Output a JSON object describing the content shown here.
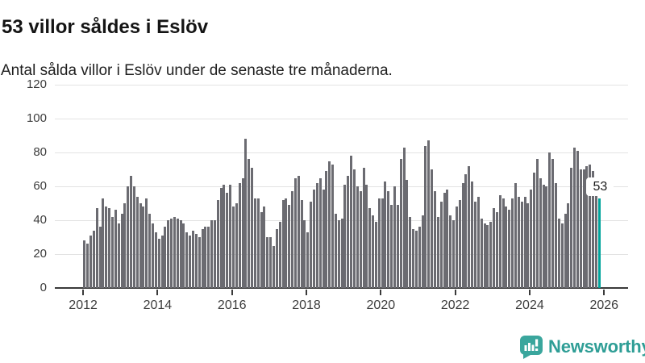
{
  "header": {
    "title": "53 villor såldes i Eslöv",
    "subtitle": "Antal sålda villor i Eslöv under de senaste tre månaderna."
  },
  "chart_data": {
    "type": "bar",
    "title": "53 villor såldes i Eslöv",
    "description": "Antal sålda villor i Eslöv under de senaste tre månaderna, rullande per månad.",
    "x_start": "2012-01",
    "frequency": "monthly",
    "values": [
      28,
      26,
      31,
      34,
      47,
      36,
      53,
      48,
      47,
      42,
      46,
      38,
      44,
      50,
      60,
      66,
      60,
      54,
      50,
      48,
      53,
      44,
      38,
      33,
      29,
      31,
      36,
      40,
      41,
      42,
      41,
      40,
      38,
      33,
      31,
      34,
      32,
      30,
      35,
      36,
      36,
      40,
      40,
      52,
      59,
      61,
      56,
      61,
      48,
      50,
      62,
      65,
      88,
      76,
      71,
      53,
      53,
      45,
      48,
      30,
      30,
      25,
      35,
      39,
      52,
      53,
      49,
      57,
      65,
      66,
      52,
      40,
      33,
      51,
      58,
      62,
      65,
      58,
      69,
      75,
      73,
      44,
      40,
      41,
      61,
      66,
      78,
      70,
      60,
      57,
      71,
      61,
      47,
      43,
      39,
      53,
      53,
      63,
      57,
      49,
      60,
      49,
      76,
      83,
      64,
      42,
      35,
      34,
      36,
      43,
      84,
      87,
      70,
      57,
      42,
      51,
      56,
      58,
      43,
      40,
      48,
      52,
      62,
      67,
      72,
      63,
      51,
      54,
      41,
      38,
      37,
      39,
      47,
      45,
      55,
      53,
      48,
      46,
      53,
      62,
      54,
      51,
      54,
      50,
      58,
      68,
      76,
      65,
      61,
      60,
      80,
      76,
      62,
      41,
      38,
      44,
      50,
      71,
      83,
      81,
      70,
      70,
      72,
      73,
      69,
      62,
      53
    ],
    "highlight_last": true,
    "annotation": {
      "label": "53",
      "value": 53
    },
    "y_ticks": [
      0,
      20,
      40,
      60,
      80,
      100,
      120
    ],
    "x_tick_years": [
      "2012",
      "2014",
      "2016",
      "2018",
      "2020",
      "2022",
      "2024",
      "2026"
    ],
    "ylim": [
      0,
      120
    ],
    "grid": true,
    "legend": "none",
    "bar_color": "#6b6b71",
    "highlight_color": "#00a49c",
    "grid_color": "#e3e3e3",
    "axis_color": "#3a3a3a"
  },
  "footer": {
    "brand": "Newsworthy",
    "brand_color": "#2f9e96",
    "brand_icon": "bar-chart-speech-bubble"
  }
}
